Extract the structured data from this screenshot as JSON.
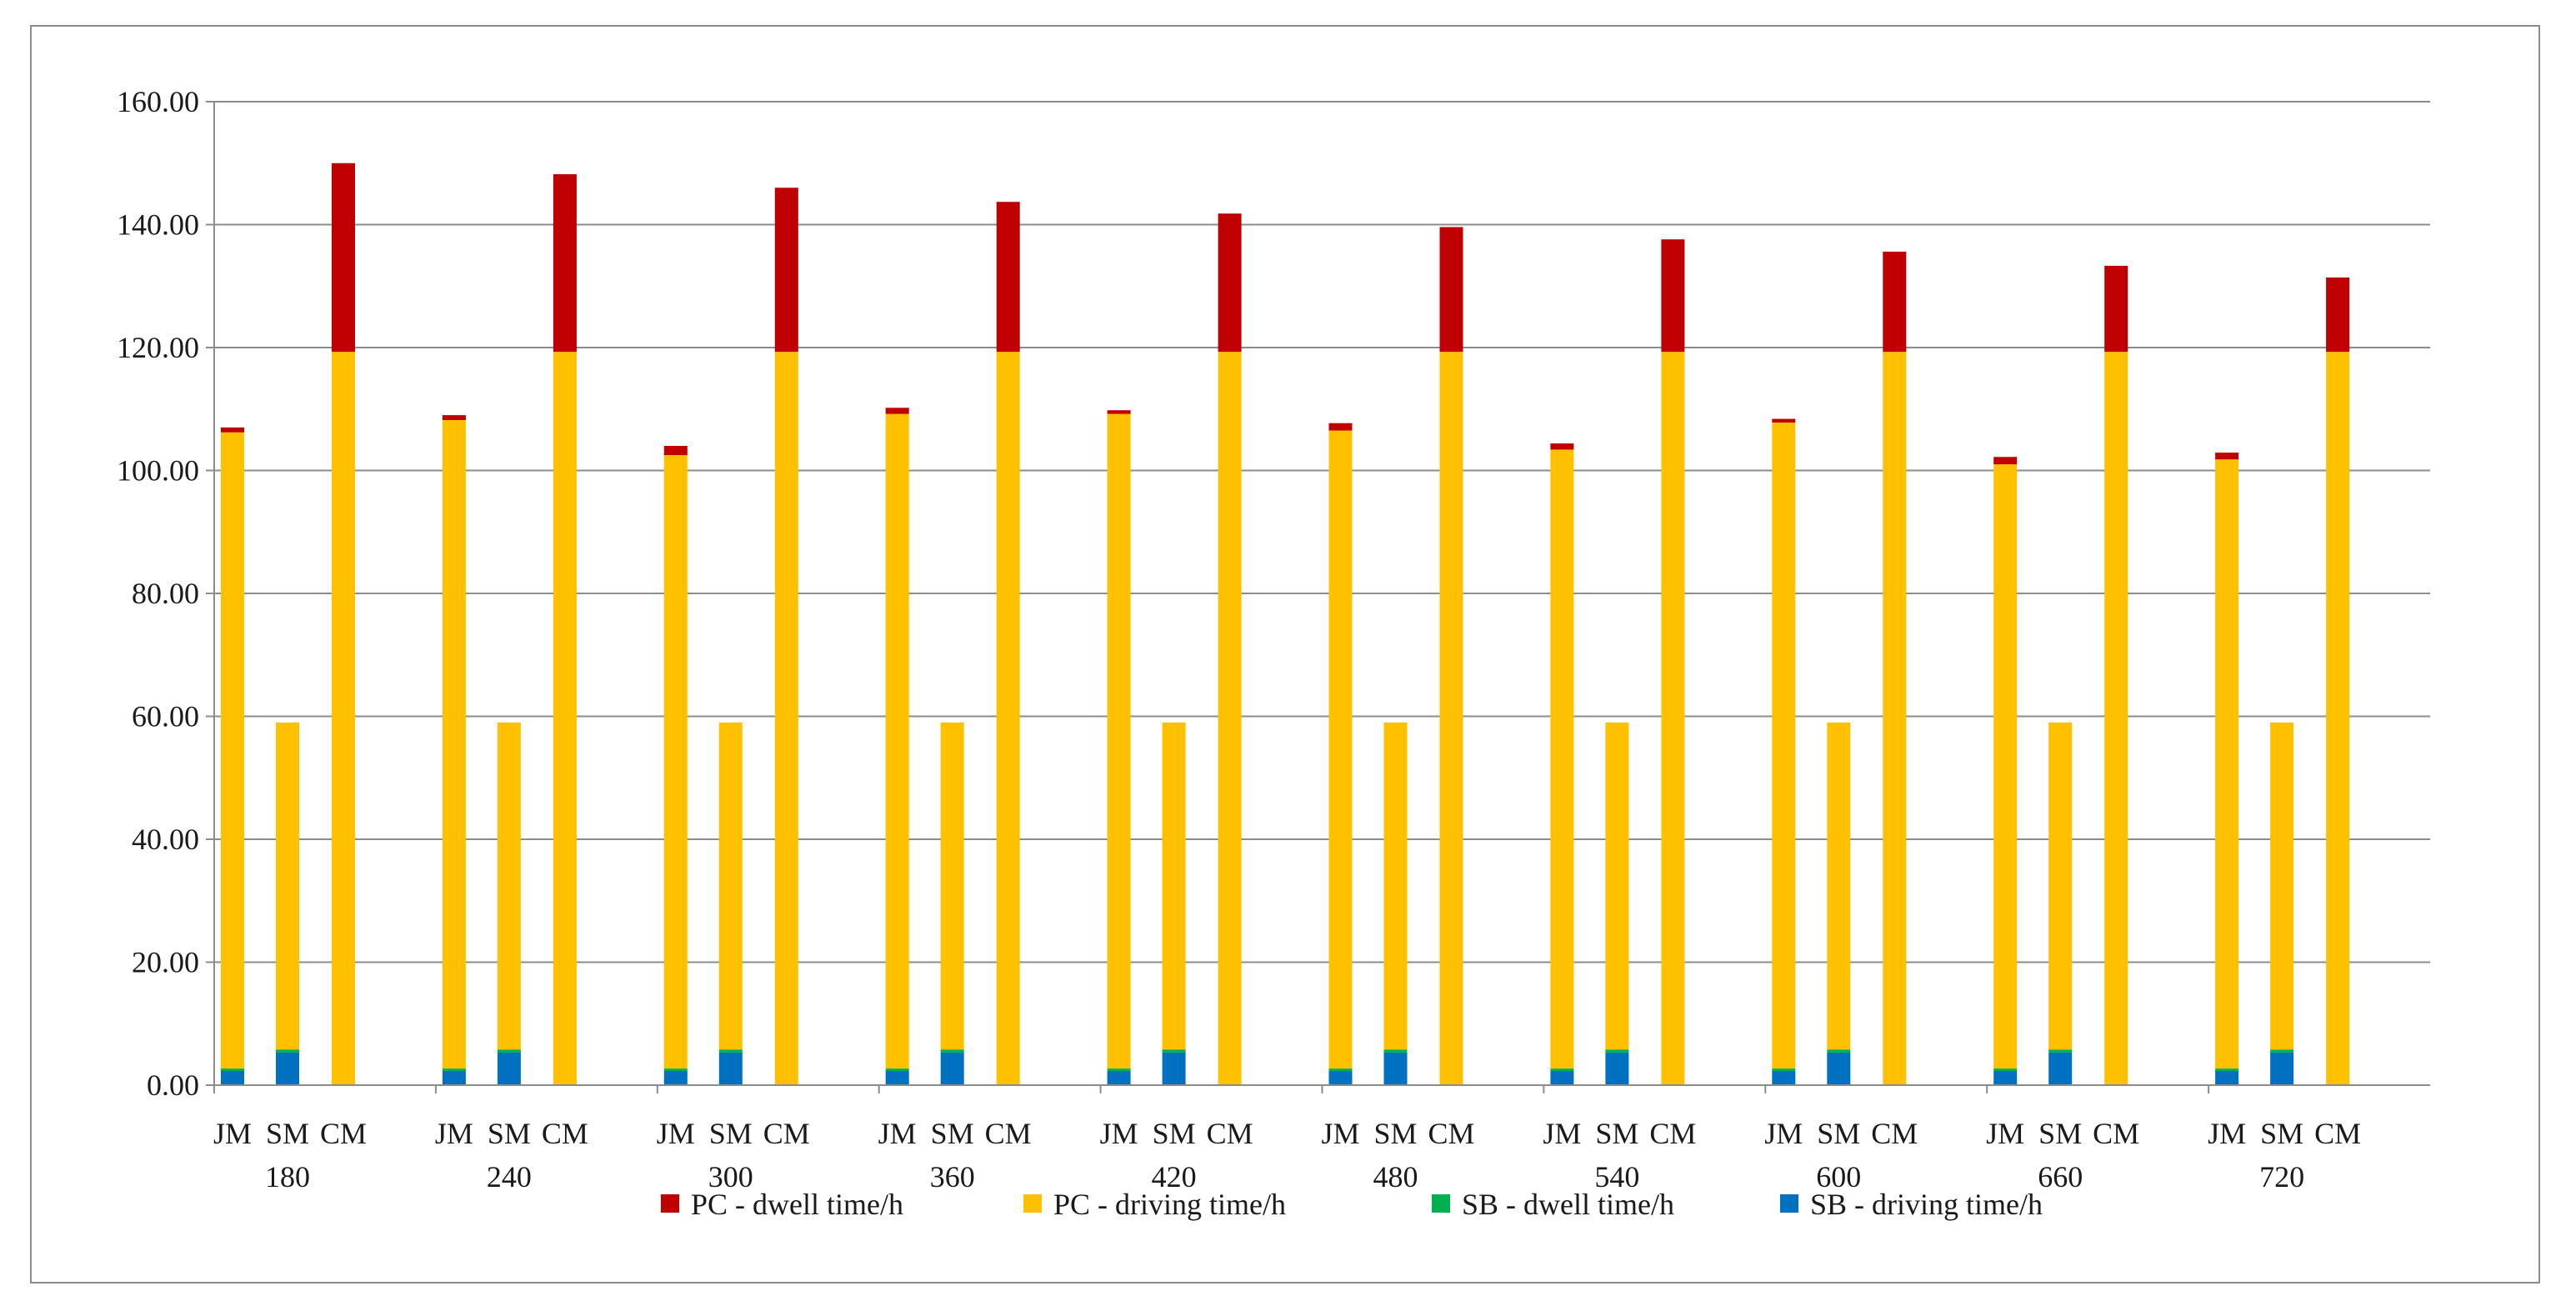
{
  "chart_data": {
    "type": "bar",
    "stacked": true,
    "title": "",
    "xlabel": "",
    "ylabel": "",
    "ylim": [
      0,
      160
    ],
    "yticks": [
      "0.00",
      "20.00",
      "40.00",
      "60.00",
      "80.00",
      "100.00",
      "120.00",
      "140.00",
      "160.00"
    ],
    "grid": true,
    "legend_position": "bottom",
    "groups": [
      "180",
      "240",
      "300",
      "360",
      "420",
      "480",
      "540",
      "600",
      "660",
      "720"
    ],
    "methods": [
      "JM",
      "SM",
      "CM"
    ],
    "series": [
      {
        "name": "SB - driving time/h",
        "color": "#0070c0",
        "values": [
          [
            2.3,
            5.3,
            0
          ],
          [
            2.3,
            5.3,
            0
          ],
          [
            2.3,
            5.3,
            0
          ],
          [
            2.3,
            5.3,
            0
          ],
          [
            2.3,
            5.3,
            0
          ],
          [
            2.3,
            5.3,
            0
          ],
          [
            2.3,
            5.3,
            0
          ],
          [
            2.3,
            5.3,
            0
          ],
          [
            2.3,
            5.3,
            0
          ],
          [
            2.3,
            5.3,
            0
          ]
        ]
      },
      {
        "name": "SB - dwell time/h",
        "color": "#00b050",
        "values": [
          [
            0.4,
            0.5,
            0
          ],
          [
            0.4,
            0.5,
            0
          ],
          [
            0.4,
            0.5,
            0
          ],
          [
            0.4,
            0.5,
            0
          ],
          [
            0.4,
            0.5,
            0
          ],
          [
            0.4,
            0.5,
            0
          ],
          [
            0.4,
            0.5,
            0
          ],
          [
            0.4,
            0.5,
            0
          ],
          [
            0.4,
            0.5,
            0
          ],
          [
            0.4,
            0.5,
            0
          ]
        ]
      },
      {
        "name": "PC - driving time/h",
        "color": "#ffc000",
        "values": [
          [
            103.5,
            53.2,
            119.3
          ],
          [
            105.5,
            53.2,
            119.3
          ],
          [
            99.8,
            53.2,
            119.3
          ],
          [
            106.5,
            53.2,
            119.3
          ],
          [
            106.5,
            53.2,
            119.3
          ],
          [
            103.8,
            53.2,
            119.3
          ],
          [
            100.7,
            53.2,
            119.3
          ],
          [
            105.1,
            53.2,
            119.3
          ],
          [
            98.3,
            53.2,
            119.3
          ],
          [
            99.1,
            53.2,
            119.3
          ]
        ]
      },
      {
        "name": "PC - dwell time/h",
        "color": "#c00000",
        "values": [
          [
            0.8,
            0,
            30.7
          ],
          [
            0.8,
            0,
            28.9
          ],
          [
            1.5,
            0,
            26.7
          ],
          [
            1.0,
            0,
            24.4
          ],
          [
            0.6,
            0,
            22.5
          ],
          [
            1.2,
            0,
            20.3
          ],
          [
            1.0,
            0,
            18.3
          ],
          [
            0.6,
            0,
            16.3
          ],
          [
            1.2,
            0,
            14.0
          ],
          [
            1.1,
            0,
            12.1
          ]
        ]
      }
    ],
    "legend_order": [
      "PC - dwell time/h",
      "PC - driving time/h",
      "SB - dwell time/h",
      "SB - driving time/h"
    ]
  }
}
